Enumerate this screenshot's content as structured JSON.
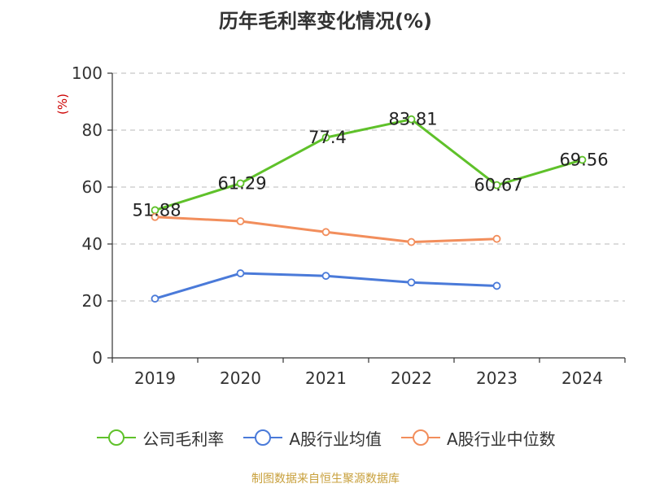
{
  "chart_data": {
    "type": "line",
    "title": "历年毛利率变化情况(%)",
    "ylabel": "(%)",
    "ylim": [
      0,
      100
    ],
    "yticks": [
      0,
      20,
      40,
      60,
      80,
      100
    ],
    "categories": [
      "2019",
      "2020",
      "2021",
      "2022",
      "2023",
      "2024"
    ],
    "grid": true,
    "legend_position": "bottom",
    "series": [
      {
        "name": "公司毛利率",
        "color": "#5fc12a",
        "values": [
          51.88,
          61.29,
          77.4,
          83.81,
          60.67,
          69.56
        ],
        "labels": [
          "51.88",
          "61.29",
          "77.4",
          "83.81",
          "60.67",
          "69.56"
        ]
      },
      {
        "name": "A股行业均值",
        "color": "#4a7ad9",
        "values": [
          20.8,
          29.7,
          28.8,
          26.5,
          25.3,
          null
        ]
      },
      {
        "name": "A股行业中位数",
        "color": "#f28e5c",
        "values": [
          49.5,
          48.0,
          44.2,
          40.7,
          41.8,
          null
        ]
      }
    ]
  },
  "source": {
    "text": "制图数据来自恒生聚源数据库",
    "color": "#c8a03c"
  },
  "axis_label_color": "#cc0000"
}
